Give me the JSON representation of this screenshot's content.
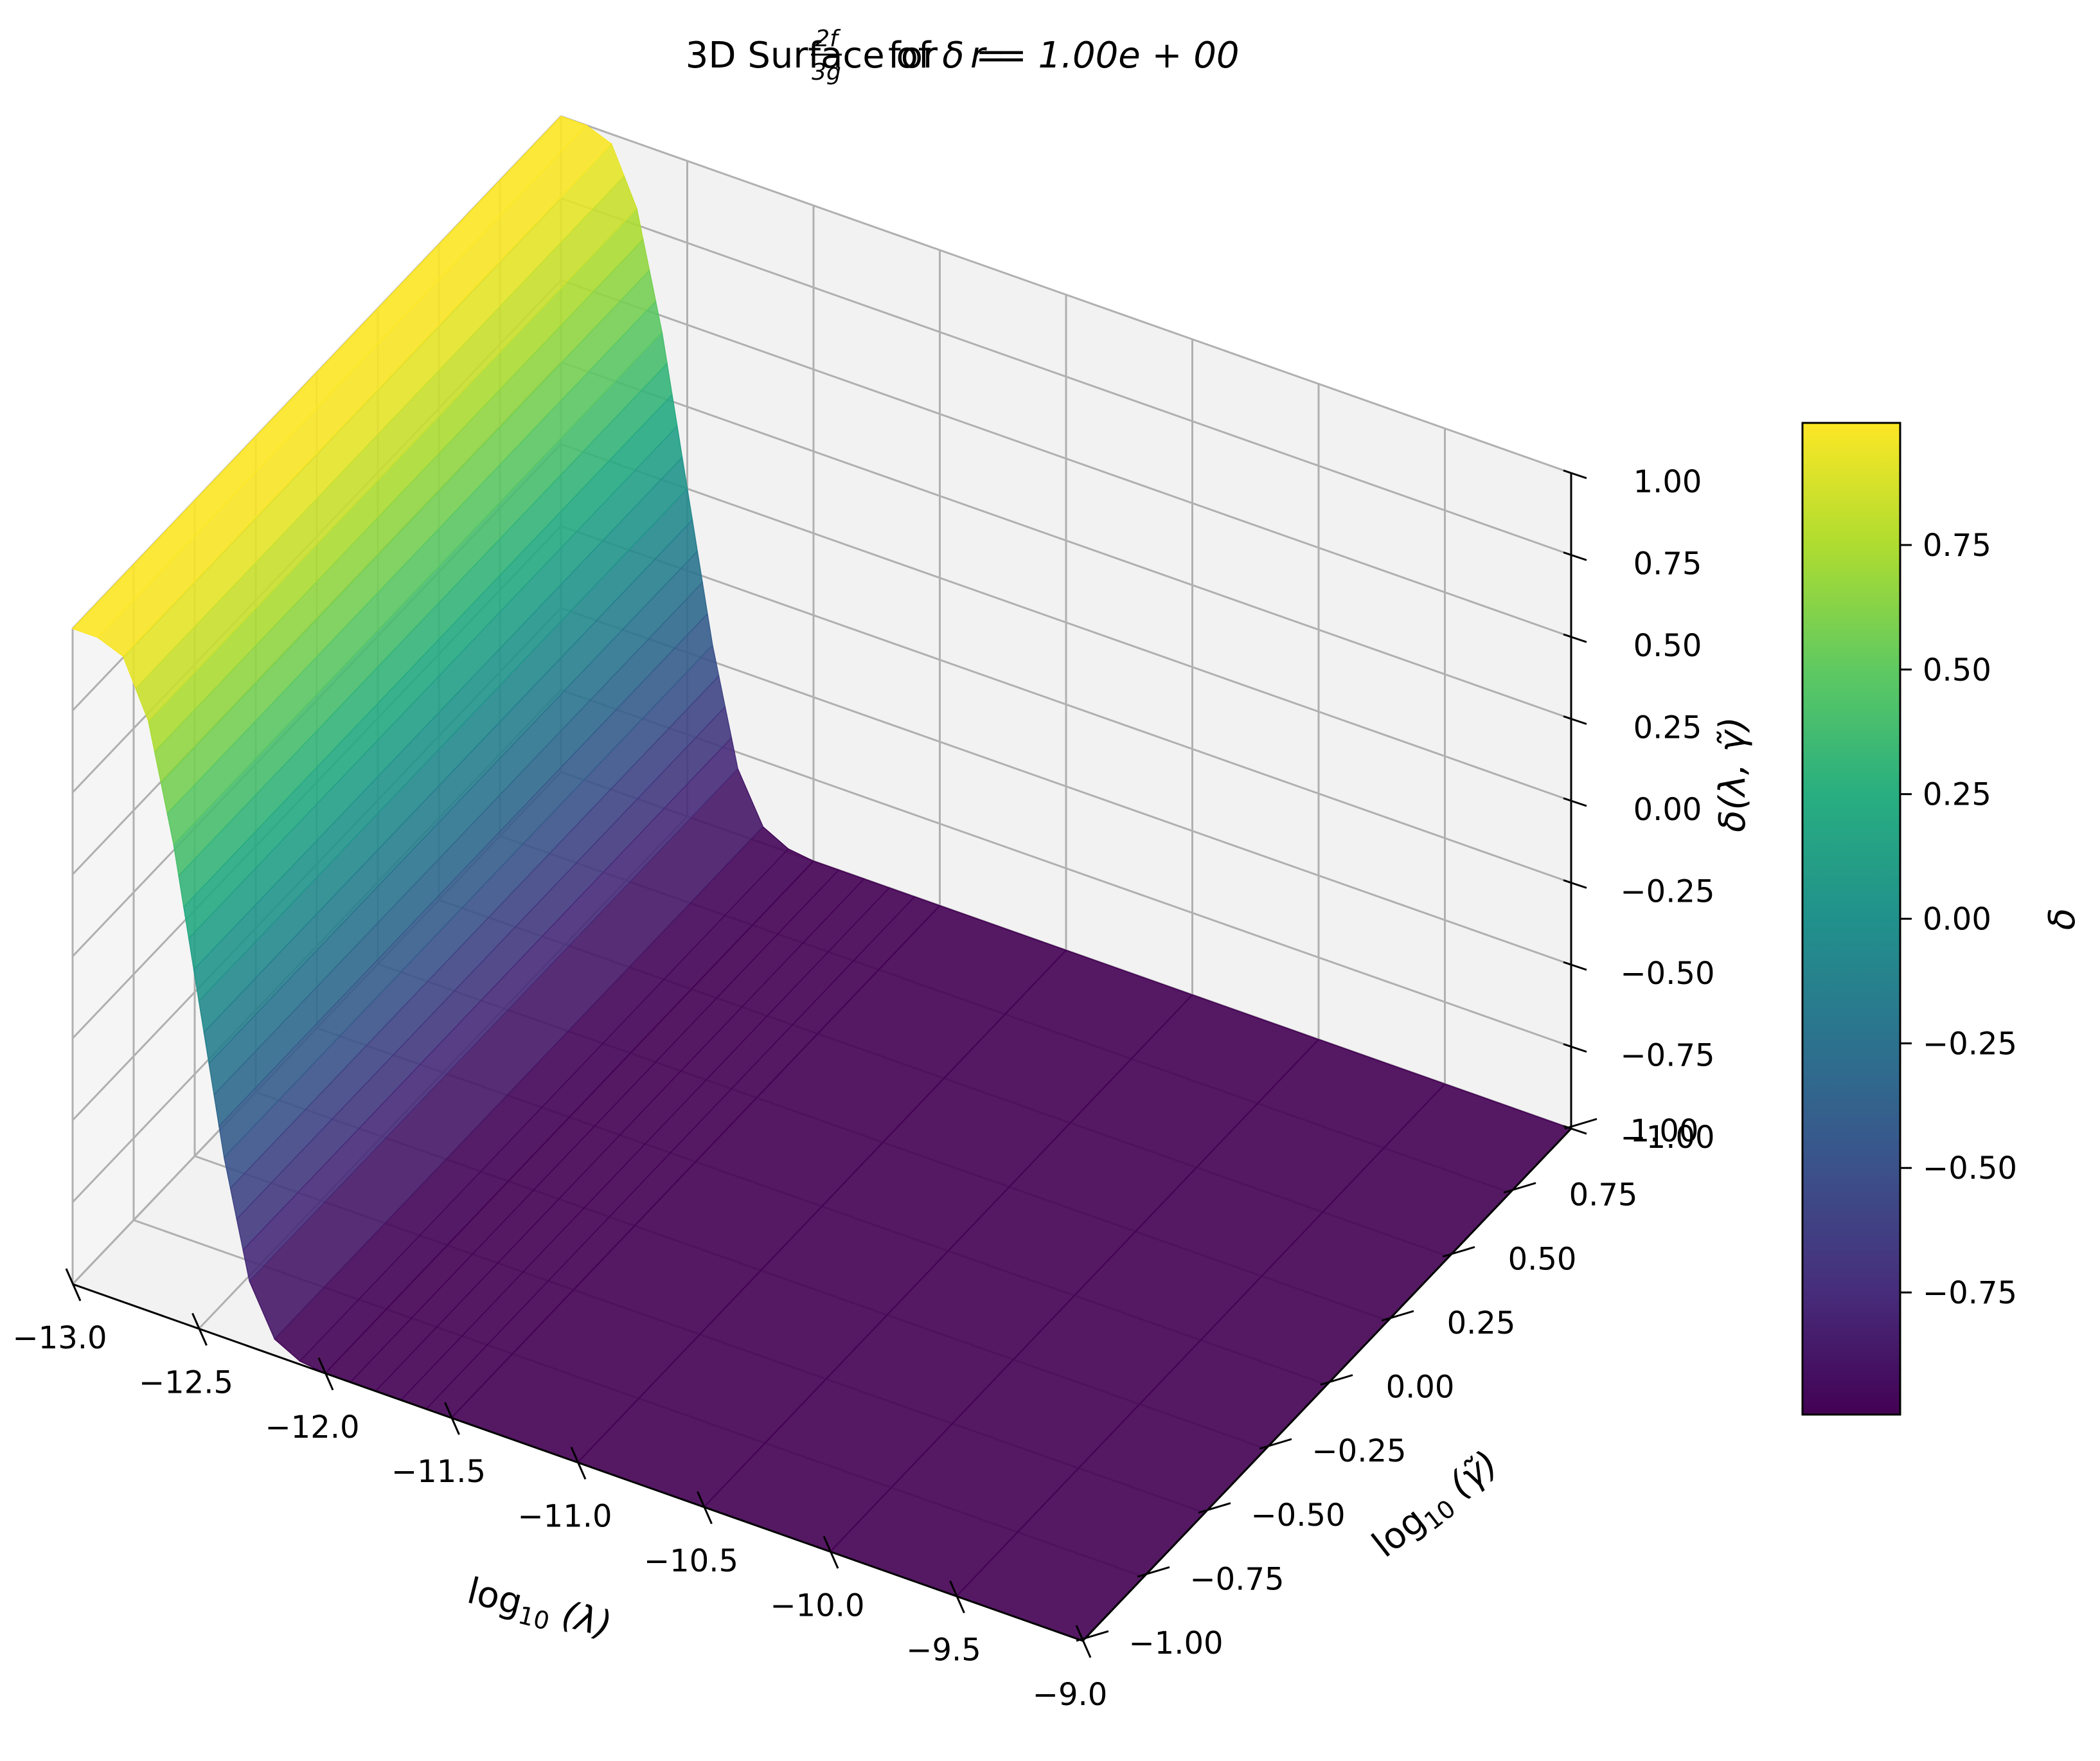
{
  "chart_data": {
    "type": "surface",
    "title": {
      "prefix": "3D Surface of ",
      "delta": "δ",
      "eq": " = ",
      "frac_num": "2f",
      "frac_den": "3g",
      "for_text": "for",
      "r_part": "r = 1.00e + 00"
    },
    "x_axis": {
      "label_parts": [
        "log",
        "10",
        " (λ)"
      ],
      "range": [
        -13.0,
        -9.0
      ],
      "ticks": [
        -13.0,
        -12.5,
        -12.0,
        -11.5,
        -11.0,
        -10.5,
        -10.0,
        -9.5,
        -9.0
      ],
      "tick_labels": [
        "−13.0",
        "−12.5",
        "−12.0",
        "−11.5",
        "−11.0",
        "−10.5",
        "−10.0",
        "−9.5",
        "−9.0"
      ]
    },
    "y_axis": {
      "label_parts": [
        "log",
        "10",
        " (γ̃)"
      ],
      "range": [
        -1.0,
        1.0
      ],
      "ticks": [
        -1.0,
        -0.75,
        -0.5,
        -0.25,
        0.0,
        0.25,
        0.5,
        0.75,
        1.0
      ],
      "tick_labels": [
        "−1.00",
        "−0.75",
        "−0.50",
        "−0.25",
        "0.00",
        "0.25",
        "0.50",
        "0.75",
        "1.00"
      ]
    },
    "z_axis": {
      "label": "δ(λ, γ̃)",
      "range": [
        -1.0,
        1.0
      ],
      "ticks": [
        -1.0,
        -0.75,
        -0.5,
        -0.25,
        0.0,
        0.25,
        0.5,
        0.75,
        1.0
      ],
      "tick_labels": [
        "−1.00",
        "−0.75",
        "−0.50",
        "−0.25",
        "0.00",
        "0.25",
        "0.50",
        "0.75",
        "1.00"
      ]
    },
    "surface": {
      "profile_lambda": [
        -13.0,
        -12.9,
        -12.8,
        -12.7,
        -12.6,
        -12.5,
        -12.4,
        -12.3,
        -12.2,
        -12.1,
        -12.0,
        -11.9,
        -11.8,
        -11.7,
        -11.6,
        -11.5,
        -11.0,
        -10.5,
        -10.0,
        -9.5,
        -9.0
      ],
      "profile_delta": [
        1.0,
        1.0,
        0.97,
        0.8,
        0.45,
        0.0,
        -0.45,
        -0.8,
        -0.95,
        -0.99,
        -1.0,
        -1.0,
        -1.0,
        -1.0,
        -1.0,
        -1.0,
        -1.0,
        -1.0,
        -1.0,
        -1.0,
        -1.0
      ],
      "gamma_dependence": "none",
      "delta_range": [
        -1.0,
        1.0
      ],
      "colormap": "viridis"
    },
    "colorbar": {
      "label": "δ",
      "range": [
        -0.995,
        0.995
      ],
      "ticks": [
        -0.75,
        -0.5,
        -0.25,
        0.0,
        0.25,
        0.5,
        0.75
      ],
      "tick_labels": [
        "−0.75",
        "−0.50",
        "−0.25",
        "0.00",
        "0.25",
        "0.50",
        "0.75"
      ]
    },
    "grid": true,
    "pane_color": "#f2f2f2",
    "grid_color": "#b0b0b0"
  }
}
